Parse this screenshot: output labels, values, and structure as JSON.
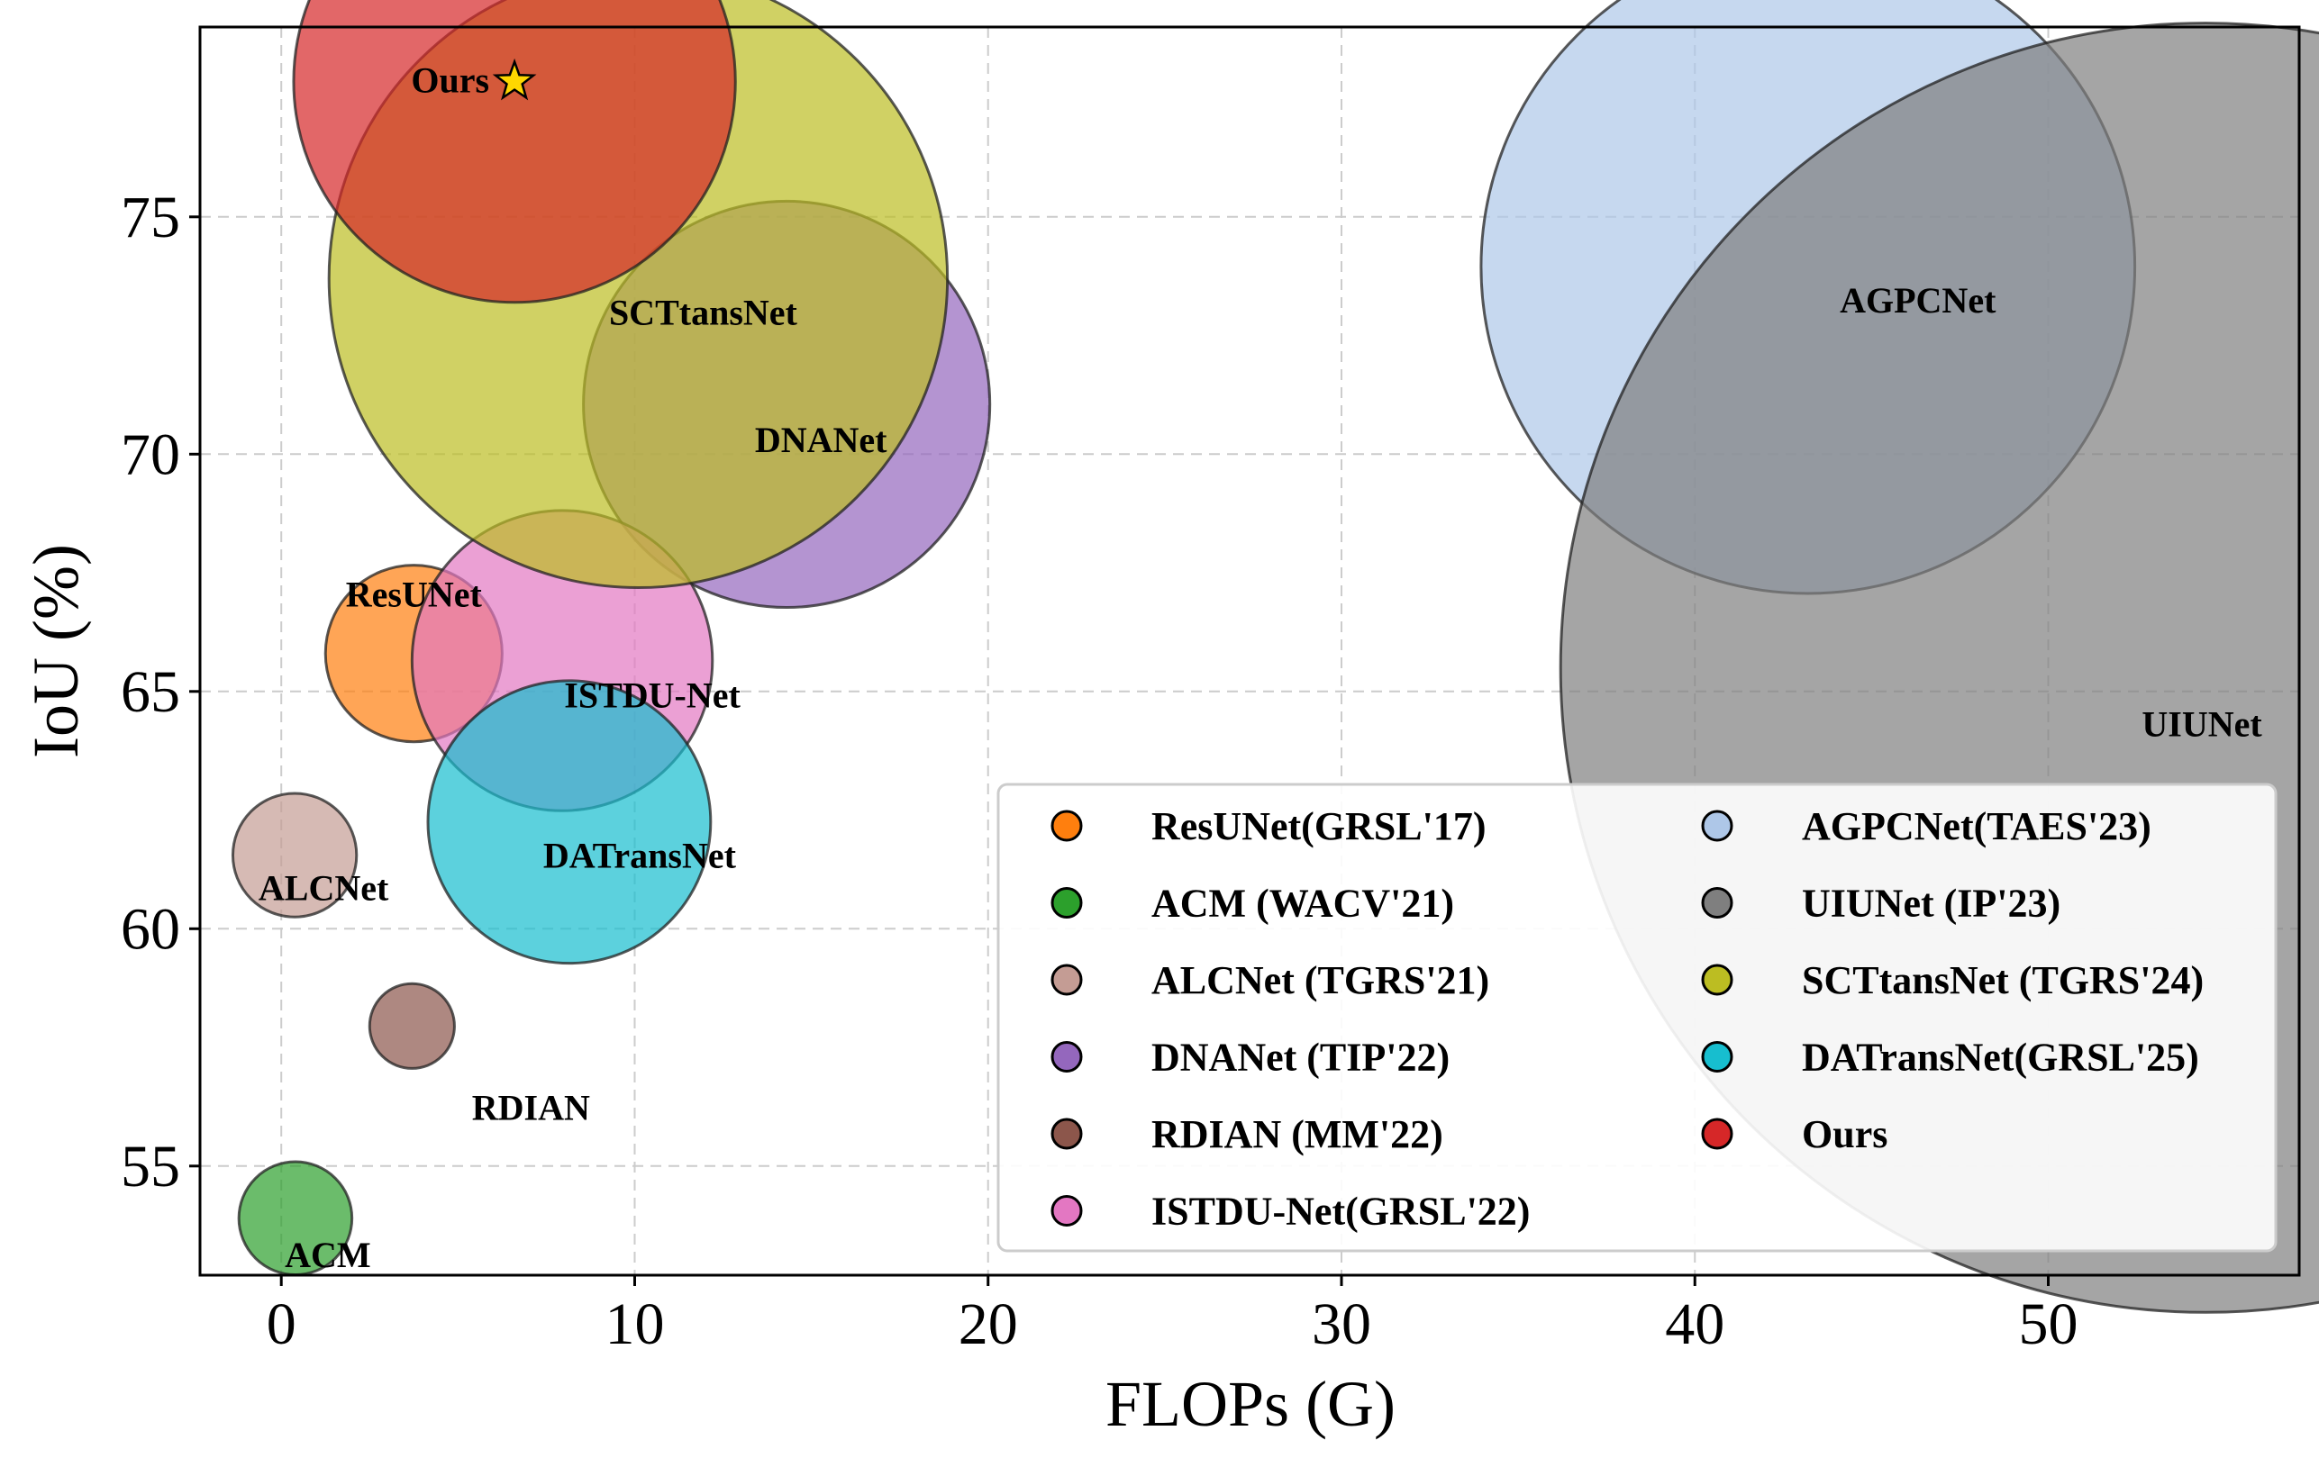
{
  "chart_data": {
    "type": "scatter",
    "title": "",
    "xlabel": "FLOPs (G)",
    "ylabel": "IoU (%)",
    "xlim": [
      -2.3,
      57.1
    ],
    "ylim": [
      52.7,
      79.0
    ],
    "xticks": [
      0,
      10,
      20,
      30,
      40,
      50
    ],
    "yticks": [
      55,
      60,
      65,
      70,
      75
    ],
    "grid": true,
    "legend_position": "lower-right",
    "series": [
      {
        "name": "ResUNet",
        "legend": "ResUNet(GRSL'17)",
        "x": 3.75,
        "y": 65.8,
        "size": 5,
        "color": "#ff7f0e"
      },
      {
        "name": "ACM",
        "legend": "ACM (WACV'21)",
        "x": 0.4,
        "y": 53.9,
        "size": 3.2,
        "color": "#2ca02c"
      },
      {
        "name": "ALCNet",
        "legend": "ALCNet (TGRS'21)",
        "x": 0.38,
        "y": 61.55,
        "size": 3.5,
        "color": "#c49c94"
      },
      {
        "name": "DNANet",
        "legend": "DNANet (TIP'22)",
        "x": 14.3,
        "y": 71.05,
        "size": 11.5,
        "color": "#9467bd"
      },
      {
        "name": "RDIAN",
        "legend": "RDIAN (MM'22)",
        "x": 3.7,
        "y": 57.95,
        "size": 2.4,
        "color": "#8c564b"
      },
      {
        "name": "ISTDU-Net",
        "legend": "ISTDU-Net(GRSL'22)",
        "x": 7.95,
        "y": 65.65,
        "size": 8.5,
        "color": "#e377c2"
      },
      {
        "name": "AGPCNet",
        "legend": "AGPCNet(TAES'23)",
        "x": 43.2,
        "y": 73.95,
        "size": 18.5,
        "color": "#aec7e8"
      },
      {
        "name": "UIUNet",
        "legend": "UIUNet (IP'23)",
        "x": 54.45,
        "y": 65.5,
        "size": 36.5,
        "color": "#7f7f7f"
      },
      {
        "name": "SCTtansNet",
        "legend": "SCTtansNet (TGRS'24)",
        "x": 10.1,
        "y": 73.7,
        "size": 17.5,
        "color": "#bcbd22"
      },
      {
        "name": "DATransNet",
        "legend": "DATransNet(GRSL'25)",
        "x": 8.15,
        "y": 62.25,
        "size": 8,
        "color": "#17becf"
      },
      {
        "name": "Ours",
        "legend": "Ours",
        "x": 6.6,
        "y": 77.85,
        "size": 12.5,
        "color": "#d62728",
        "marker": "star"
      }
    ]
  },
  "colors": {
    "star_fill": "#ffd700"
  }
}
